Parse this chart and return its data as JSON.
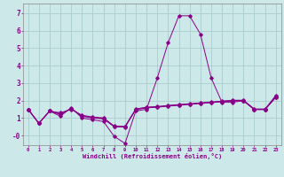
{
  "xlabel": "Windchill (Refroidissement éolien,°C)",
  "bg_color": "#cce8e8",
  "grid_color": "#aacccc",
  "line_color": "#880088",
  "xlim_min": -0.5,
  "xlim_max": 23.5,
  "ylim_min": -0.55,
  "ylim_max": 7.55,
  "ytick_vals": [
    0,
    1,
    2,
    3,
    4,
    5,
    6,
    7
  ],
  "ytick_labels": [
    "-0",
    "1",
    "2",
    "3",
    "4",
    "5",
    "6",
    "7"
  ],
  "xtick_vals": [
    0,
    1,
    2,
    3,
    4,
    5,
    6,
    7,
    8,
    9,
    10,
    11,
    12,
    13,
    14,
    15,
    16,
    17,
    18,
    19,
    20,
    21,
    22,
    23
  ],
  "series_main": [
    1.5,
    0.7,
    1.4,
    1.1,
    1.6,
    1.0,
    0.9,
    0.8,
    -0.05,
    -0.45,
    1.4,
    1.5,
    3.3,
    5.3,
    6.85,
    6.85,
    5.8,
    3.3,
    1.9,
    1.9,
    2.0,
    1.5,
    1.5,
    2.3
  ],
  "series_a": [
    1.5,
    0.7,
    1.4,
    1.2,
    1.55,
    1.1,
    1.0,
    0.95,
    0.5,
    0.48,
    1.48,
    1.58,
    1.62,
    1.68,
    1.73,
    1.78,
    1.83,
    1.88,
    1.93,
    1.98,
    1.98,
    1.48,
    1.48,
    2.18
  ],
  "series_b": [
    1.5,
    0.7,
    1.4,
    1.25,
    1.52,
    1.13,
    1.03,
    0.98,
    0.52,
    0.5,
    1.5,
    1.6,
    1.64,
    1.7,
    1.75,
    1.8,
    1.85,
    1.9,
    1.95,
    2.0,
    2.0,
    1.5,
    1.5,
    2.2
  ],
  "series_c": [
    1.5,
    0.7,
    1.4,
    1.3,
    1.5,
    1.16,
    1.06,
    1.01,
    0.54,
    0.52,
    1.52,
    1.62,
    1.66,
    1.72,
    1.77,
    1.82,
    1.87,
    1.92,
    1.97,
    2.02,
    2.02,
    1.52,
    1.52,
    2.22
  ]
}
